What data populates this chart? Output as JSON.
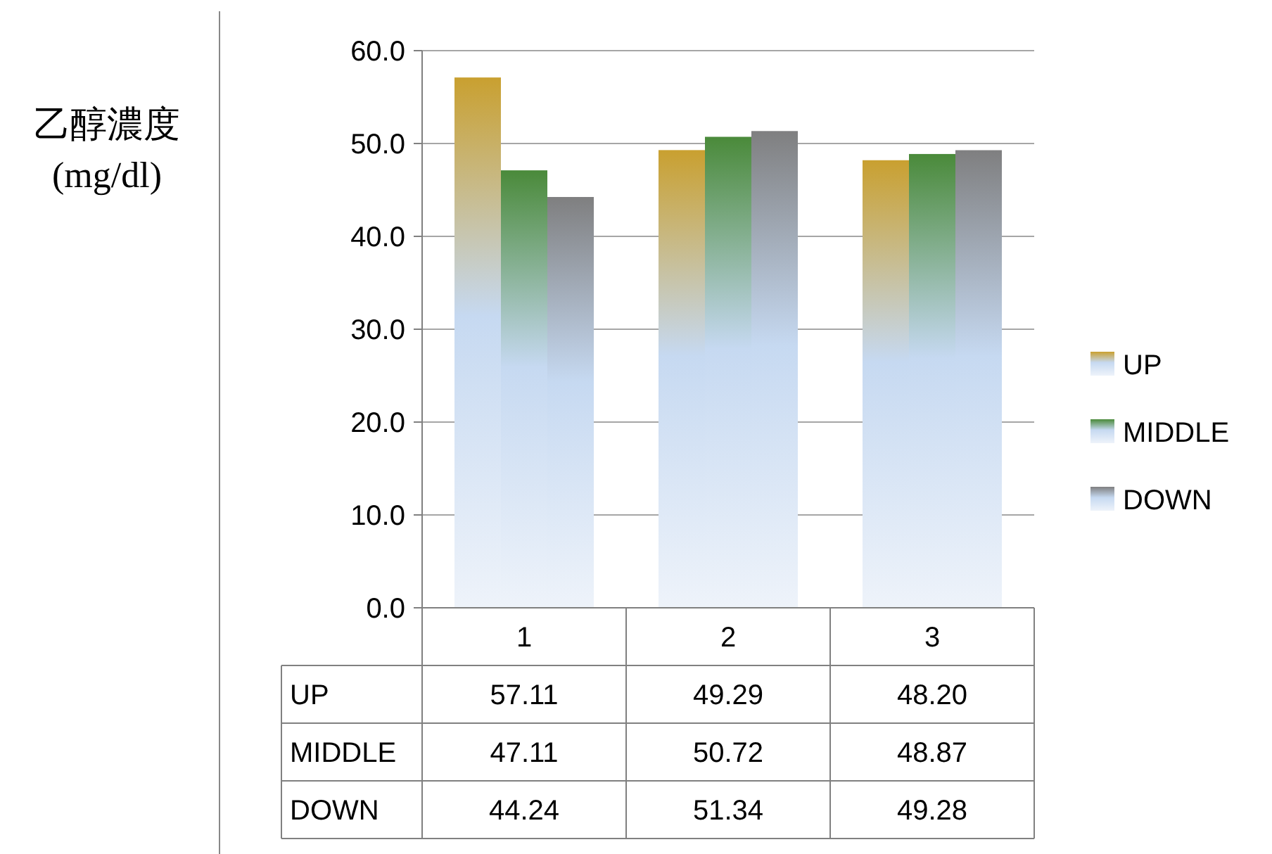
{
  "chart_data": {
    "type": "bar",
    "ylabel": "乙醇濃度\n(mg/dl)",
    "categories": [
      "1",
      "2",
      "3"
    ],
    "series": [
      {
        "name": "UP",
        "color": "#c9a030",
        "values": [
          57.11,
          49.29,
          48.2
        ],
        "value_labels": [
          "57.11",
          "49.29",
          "48.20"
        ]
      },
      {
        "name": "MIDDLE",
        "color": "#4a8a3a",
        "values": [
          47.11,
          50.72,
          48.87
        ],
        "value_labels": [
          "47.11",
          "50.72",
          "48.87"
        ]
      },
      {
        "name": "DOWN",
        "color": "#7f7f80",
        "values": [
          44.24,
          51.34,
          49.28
        ],
        "value_labels": [
          "44.24",
          "51.34",
          "49.28"
        ]
      }
    ],
    "ylim": [
      0,
      60
    ],
    "yticks": [
      {
        "value": 0,
        "label": "0.0"
      },
      {
        "value": 10,
        "label": "10.0"
      },
      {
        "value": 20,
        "label": "20.0"
      },
      {
        "value": 30,
        "label": "30.0"
      },
      {
        "value": 40,
        "label": "40.0"
      },
      {
        "value": 50,
        "label": "50.0"
      },
      {
        "value": 60,
        "label": "60.0"
      }
    ],
    "grid": "y",
    "legend": "right"
  }
}
